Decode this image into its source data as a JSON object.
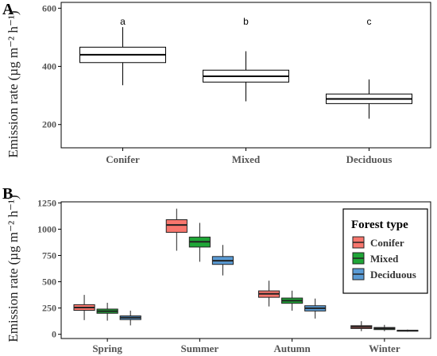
{
  "panels": [
    {
      "letter": "A",
      "ylabel": "Emission rate (µg m⁻² h⁻¹)"
    },
    {
      "letter": "B",
      "ylabel": "Emission rate (µg m⁻² h⁻¹)"
    }
  ],
  "legend": {
    "title": "Forest type",
    "entries": [
      {
        "label": "Conifer",
        "color": "#f8766d"
      },
      {
        "label": "Mixed",
        "color": "#1fa637"
      },
      {
        "label": "Deciduous",
        "color": "#5a9bd5"
      }
    ]
  },
  "chart_data": [
    {
      "type": "boxplot",
      "panel": "A",
      "xlabel": "",
      "ylabel": "Emission rate (µg m⁻² h⁻¹)",
      "categories": [
        "Conifer",
        "Mixed",
        "Deciduous"
      ],
      "ylim": [
        120,
        620
      ],
      "yticks": [
        200,
        400,
        600
      ],
      "grid": false,
      "boxes": [
        {
          "category": "Conifer",
          "min": 335,
          "q1": 413,
          "median": 440,
          "q3": 466,
          "max": 535,
          "label": "a",
          "fill": "#ffffff"
        },
        {
          "category": "Mixed",
          "min": 280,
          "q1": 346,
          "median": 366,
          "q3": 387,
          "max": 452,
          "label": "b",
          "fill": "#ffffff"
        },
        {
          "category": "Deciduous",
          "min": 220,
          "q1": 272,
          "median": 288,
          "q3": 305,
          "max": 355,
          "label": "c",
          "fill": "#ffffff"
        }
      ]
    },
    {
      "type": "boxplot",
      "panel": "B",
      "xlabel": "",
      "ylabel": "Emission rate (µg m⁻² h⁻¹)",
      "categories": [
        "Spring",
        "Summer",
        "Autumn",
        "Winter"
      ],
      "ylim": [
        -40,
        1260
      ],
      "yticks": [
        0,
        250,
        500,
        750,
        1000,
        1250
      ],
      "grid": false,
      "legend_position": "right",
      "series": [
        {
          "name": "Conifer",
          "color": "#f8766d",
          "boxes": [
            {
              "category": "Spring",
              "min": 135,
              "q1": 228,
              "median": 255,
              "q3": 282,
              "max": 375
            },
            {
              "category": "Summer",
              "min": 795,
              "q1": 970,
              "median": 1040,
              "q3": 1090,
              "max": 1195
            },
            {
              "category": "Autumn",
              "min": 265,
              "q1": 352,
              "median": 385,
              "q3": 413,
              "max": 510
            },
            {
              "category": "Winter",
              "min": 30,
              "q1": 55,
              "median": 70,
              "q3": 82,
              "max": 125
            }
          ]
        },
        {
          "name": "Mixed",
          "color": "#1fa637",
          "boxes": [
            {
              "category": "Spring",
              "min": 130,
              "q1": 200,
              "median": 220,
              "q3": 240,
              "max": 300
            },
            {
              "category": "Summer",
              "min": 690,
              "q1": 830,
              "median": 880,
              "q3": 925,
              "max": 1060
            },
            {
              "category": "Autumn",
              "min": 225,
              "q1": 295,
              "median": 320,
              "q3": 345,
              "max": 415
            },
            {
              "category": "Winter",
              "min": 30,
              "q1": 45,
              "median": 55,
              "q3": 65,
              "max": 90
            }
          ]
        },
        {
          "name": "Deciduous",
          "color": "#5a9bd5",
          "boxes": [
            {
              "category": "Spring",
              "min": 85,
              "q1": 140,
              "median": 158,
              "q3": 175,
              "max": 225
            },
            {
              "category": "Summer",
              "min": 560,
              "q1": 665,
              "median": 700,
              "q3": 740,
              "max": 850
            },
            {
              "category": "Autumn",
              "min": 150,
              "q1": 222,
              "median": 248,
              "q3": 272,
              "max": 340
            },
            {
              "category": "Winter",
              "min": 25,
              "q1": 30,
              "median": 35,
              "q3": 38,
              "max": 45
            }
          ]
        }
      ]
    }
  ]
}
